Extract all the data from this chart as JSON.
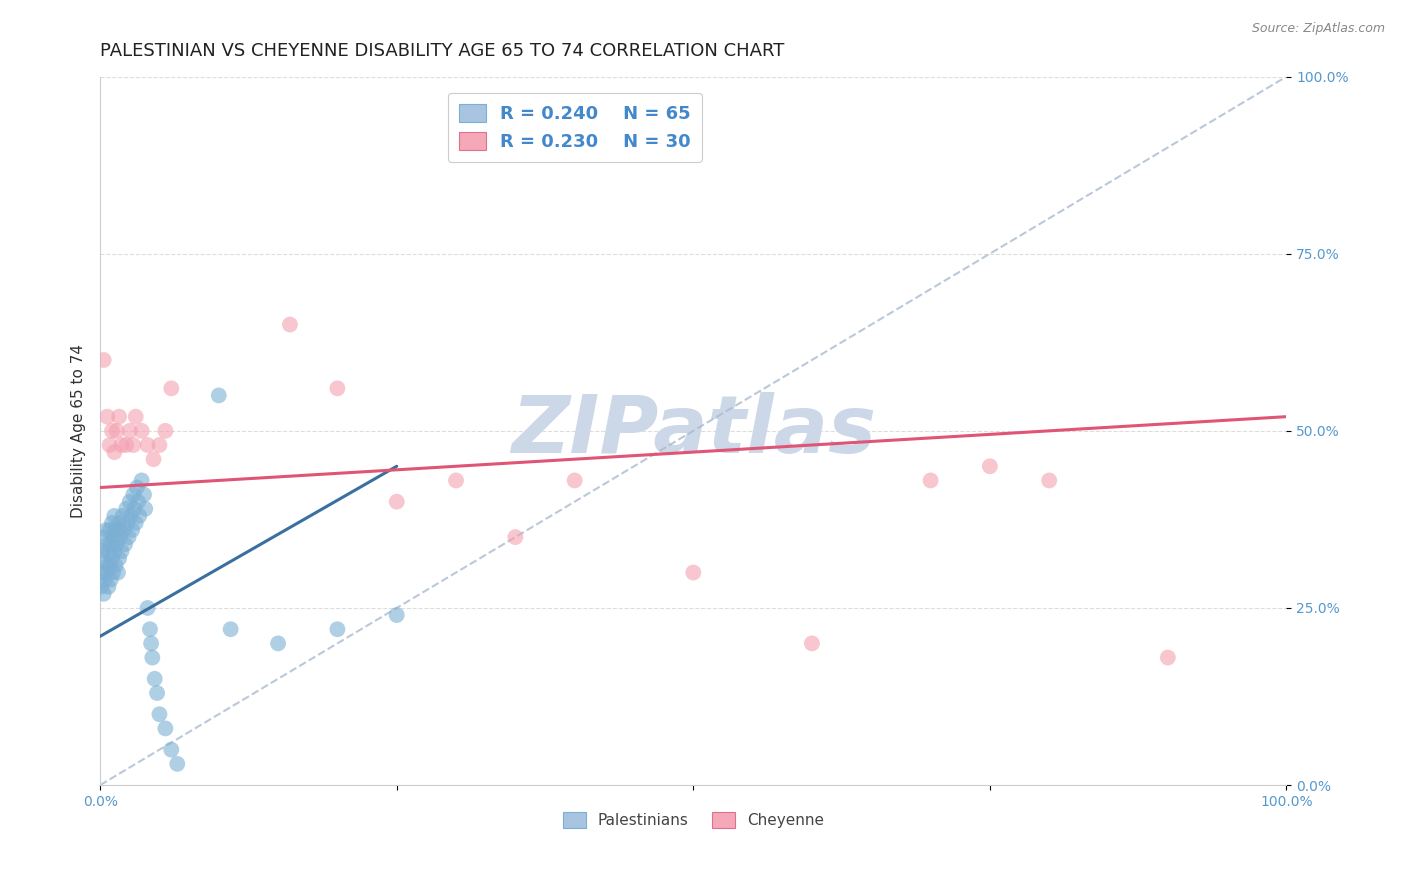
{
  "title": "PALESTINIAN VS CHEYENNE DISABILITY AGE 65 TO 74 CORRELATION CHART",
  "source": "Source: ZipAtlas.com",
  "ylabel": "Disability Age 65 to 74",
  "xlim": [
    0,
    1
  ],
  "ylim": [
    0,
    1
  ],
  "ytick_labels": [
    "0.0%",
    "25.0%",
    "50.0%",
    "75.0%",
    "100.0%"
  ],
  "ytick_values": [
    0,
    0.25,
    0.5,
    0.75,
    1.0
  ],
  "legend_entries": [
    {
      "color": "#a8c4e0",
      "border_color": "#7bafd4",
      "R": "0.240",
      "N": "65"
    },
    {
      "color": "#f4a8b8",
      "border_color": "#e07090",
      "R": "0.230",
      "N": "30"
    }
  ],
  "palestinians": {
    "color": "#7bafd4",
    "trendline_color": "#3a6fa0",
    "trendline_x0": 0.0,
    "trendline_y0": 0.21,
    "trendline_x1": 0.25,
    "trendline_y1": 0.45,
    "x": [
      0.001,
      0.002,
      0.002,
      0.003,
      0.003,
      0.004,
      0.004,
      0.005,
      0.005,
      0.006,
      0.006,
      0.007,
      0.007,
      0.008,
      0.008,
      0.009,
      0.009,
      0.01,
      0.01,
      0.011,
      0.011,
      0.012,
      0.012,
      0.013,
      0.013,
      0.014,
      0.015,
      0.015,
      0.016,
      0.016,
      0.017,
      0.018,
      0.019,
      0.02,
      0.021,
      0.022,
      0.023,
      0.024,
      0.025,
      0.026,
      0.027,
      0.028,
      0.029,
      0.03,
      0.031,
      0.032,
      0.033,
      0.035,
      0.037,
      0.038,
      0.04,
      0.042,
      0.043,
      0.044,
      0.046,
      0.048,
      0.05,
      0.055,
      0.06,
      0.065,
      0.1,
      0.11,
      0.15,
      0.2,
      0.25
    ],
    "y": [
      0.28,
      0.3,
      0.32,
      0.27,
      0.33,
      0.29,
      0.35,
      0.3,
      0.36,
      0.31,
      0.34,
      0.28,
      0.33,
      0.31,
      0.36,
      0.29,
      0.34,
      0.32,
      0.37,
      0.3,
      0.35,
      0.33,
      0.38,
      0.31,
      0.36,
      0.34,
      0.3,
      0.36,
      0.32,
      0.37,
      0.35,
      0.33,
      0.38,
      0.36,
      0.34,
      0.39,
      0.37,
      0.35,
      0.4,
      0.38,
      0.36,
      0.41,
      0.39,
      0.37,
      0.42,
      0.4,
      0.38,
      0.43,
      0.41,
      0.39,
      0.25,
      0.22,
      0.2,
      0.18,
      0.15,
      0.13,
      0.1,
      0.08,
      0.05,
      0.03,
      0.55,
      0.22,
      0.2,
      0.22,
      0.24
    ]
  },
  "cheyenne": {
    "color": "#f4a0b0",
    "trendline_color": "#e05575",
    "trendline_x0": 0.0,
    "trendline_y0": 0.42,
    "trendline_x1": 1.0,
    "trendline_y1": 0.52,
    "x": [
      0.003,
      0.006,
      0.008,
      0.01,
      0.012,
      0.014,
      0.016,
      0.018,
      0.022,
      0.025,
      0.028,
      0.03,
      0.035,
      0.04,
      0.045,
      0.05,
      0.055,
      0.06,
      0.16,
      0.2,
      0.25,
      0.3,
      0.35,
      0.4,
      0.5,
      0.6,
      0.7,
      0.75,
      0.8,
      0.9
    ],
    "y": [
      0.6,
      0.52,
      0.48,
      0.5,
      0.47,
      0.5,
      0.52,
      0.48,
      0.48,
      0.5,
      0.48,
      0.52,
      0.5,
      0.48,
      0.46,
      0.48,
      0.5,
      0.56,
      0.65,
      0.56,
      0.4,
      0.43,
      0.35,
      0.43,
      0.3,
      0.2,
      0.43,
      0.45,
      0.43,
      0.18
    ]
  },
  "diag_line_color": "#aabbd0",
  "bg_color": "#ffffff",
  "grid_color": "#dddddd",
  "title_fontsize": 13,
  "axis_label_fontsize": 11,
  "tick_fontsize": 10,
  "watermark": "ZIPatlas",
  "watermark_color": "#ccd8e8"
}
